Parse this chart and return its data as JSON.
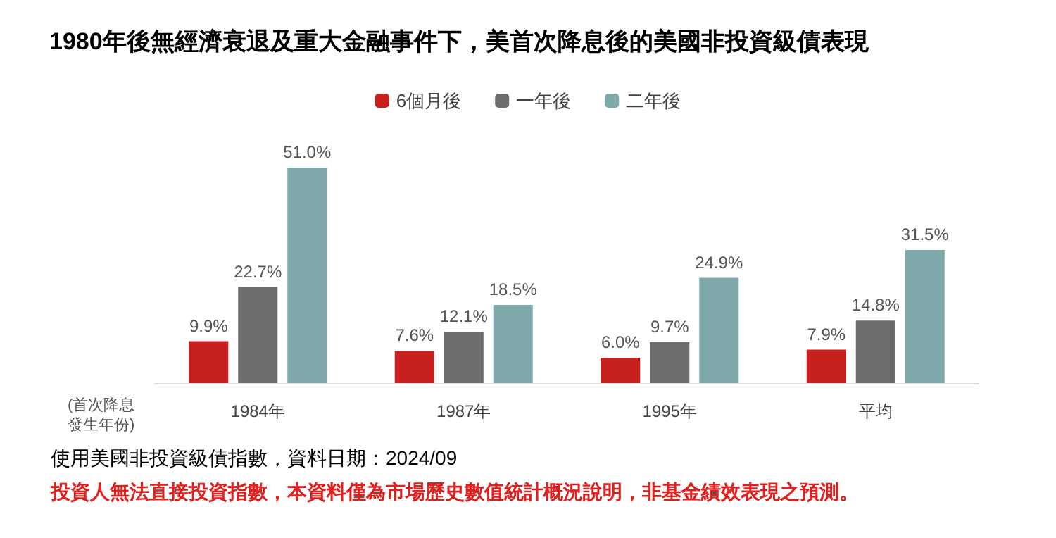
{
  "chart_data": {
    "type": "bar",
    "title": "1980年後無經濟衰退及重大金融事件下，美首次降息後的美國非投資級債表現",
    "xlabel": "(首次降息發生年份)",
    "categories": [
      "1984年",
      "1987年",
      "1995年",
      "平均"
    ],
    "series": [
      {
        "name": "6個月後",
        "color": "#c8201e",
        "values": [
          9.9,
          7.6,
          6.0,
          7.9
        ],
        "value_labels": [
          "9.9%",
          "7.6%",
          "6.0%",
          "7.9%"
        ]
      },
      {
        "name": "一年後",
        "color": "#6d6d6d",
        "values": [
          22.7,
          12.1,
          9.7,
          14.8
        ],
        "value_labels": [
          "22.7%",
          "12.1%",
          "9.7%",
          "14.8%"
        ]
      },
      {
        "name": "二年後",
        "color": "#7fa8ab",
        "values": [
          51.0,
          18.5,
          24.9,
          31.5
        ],
        "value_labels": [
          "51.0%",
          "18.5%",
          "24.9%",
          "31.5%"
        ]
      }
    ],
    "legend": "top",
    "annotations": [
      "使用美國非投資級債指數，資料日期：2024/09",
      "投資人無法直接投資指數，本資料僅為市場歷史數值統計概況說明，非基金績效表現之預測。"
    ]
  }
}
